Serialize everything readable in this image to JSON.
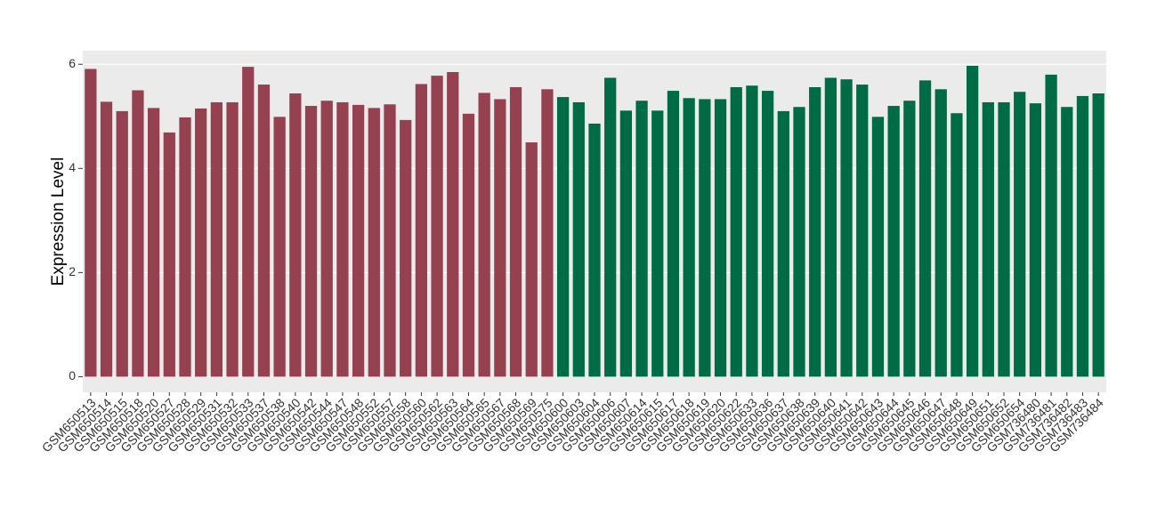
{
  "chart_data": {
    "type": "bar",
    "y_label": "Expression Level",
    "categories": [
      "GSM650513",
      "GSM650514",
      "GSM650515",
      "GSM650518",
      "GSM650520",
      "GSM650527",
      "GSM650528",
      "GSM650529",
      "GSM650531",
      "GSM650532",
      "GSM650533",
      "GSM650537",
      "GSM650538",
      "GSM650540",
      "GSM650542",
      "GSM650544",
      "GSM650547",
      "GSM650548",
      "GSM650552",
      "GSM650557",
      "GSM650558",
      "GSM650560",
      "GSM650562",
      "GSM650563",
      "GSM650564",
      "GSM650565",
      "GSM650567",
      "GSM650568",
      "GSM650569",
      "GSM650575",
      "GSM650600",
      "GSM650603",
      "GSM650604",
      "GSM650606",
      "GSM650607",
      "GSM650614",
      "GSM650615",
      "GSM650617",
      "GSM650618",
      "GSM650619",
      "GSM650620",
      "GSM650622",
      "GSM650633",
      "GSM650636",
      "GSM650637",
      "GSM650638",
      "GSM650639",
      "GSM650640",
      "GSM650641",
      "GSM650642",
      "GSM650643",
      "GSM650644",
      "GSM650645",
      "GSM650646",
      "GSM650647",
      "GSM650648",
      "GSM650649",
      "GSM650651",
      "GSM650652",
      "GSM650654",
      "GSM736480",
      "GSM736481",
      "GSM736482",
      "GSM736483",
      "GSM736484"
    ],
    "values": [
      5.91,
      5.28,
      5.1,
      5.5,
      5.16,
      4.69,
      4.98,
      5.15,
      5.27,
      5.27,
      5.95,
      5.61,
      4.99,
      5.44,
      5.2,
      5.3,
      5.27,
      5.22,
      5.16,
      5.23,
      4.93,
      5.62,
      5.78,
      5.85,
      5.05,
      5.45,
      5.33,
      5.56,
      4.5,
      5.52,
      5.37,
      5.27,
      4.86,
      5.74,
      5.11,
      5.3,
      5.11,
      5.49,
      5.35,
      5.33,
      5.33,
      5.56,
      5.59,
      5.49,
      5.1,
      5.18,
      5.56,
      5.74,
      5.71,
      5.61,
      4.99,
      5.2,
      5.3,
      5.69,
      5.52,
      5.06,
      5.97,
      5.27,
      5.27,
      5.47,
      5.25,
      5.8,
      5.18,
      5.39,
      5.44
    ],
    "colors": [
      "#954150",
      "#954150",
      "#954150",
      "#954150",
      "#954150",
      "#954150",
      "#954150",
      "#954150",
      "#954150",
      "#954150",
      "#954150",
      "#954150",
      "#954150",
      "#954150",
      "#954150",
      "#954150",
      "#954150",
      "#954150",
      "#954150",
      "#954150",
      "#954150",
      "#954150",
      "#954150",
      "#954150",
      "#954150",
      "#954150",
      "#954150",
      "#954150",
      "#954150",
      "#954150",
      "#006c45",
      "#006c45",
      "#006c45",
      "#006c45",
      "#006c45",
      "#006c45",
      "#006c45",
      "#006c45",
      "#006c45",
      "#006c45",
      "#006c45",
      "#006c45",
      "#006c45",
      "#006c45",
      "#006c45",
      "#006c45",
      "#006c45",
      "#006c45",
      "#006c45",
      "#006c45",
      "#006c45",
      "#006c45",
      "#006c45",
      "#006c45",
      "#006c45",
      "#006c45",
      "#006c45",
      "#006c45",
      "#006c45",
      "#006c45",
      "#006c45",
      "#006c45",
      "#006c45",
      "#006c45",
      "#006c45"
    ],
    "ylim": [
      -0.3,
      6.26
    ],
    "yticks": [
      0,
      2,
      4,
      6
    ],
    "grid": true
  }
}
